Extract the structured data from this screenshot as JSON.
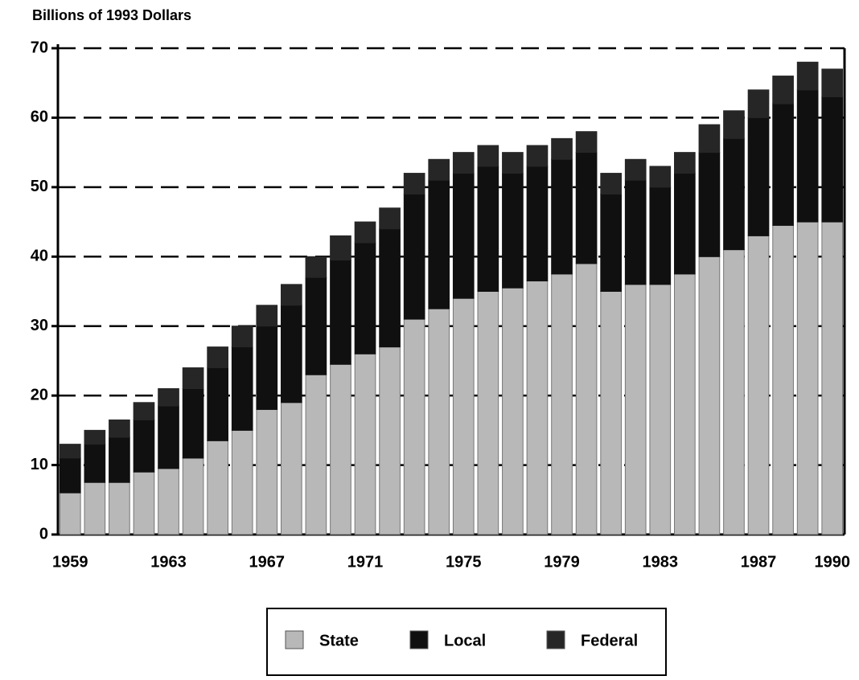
{
  "chart_data": {
    "type": "stacked_bar",
    "ylabel": "Billions of 1993 Dollars",
    "categories": [
      "1959",
      null,
      null,
      null,
      "1963",
      null,
      null,
      null,
      "1967",
      null,
      null,
      null,
      "1971",
      null,
      null,
      null,
      "1975",
      null,
      null,
      null,
      "1979",
      null,
      null,
      null,
      "1983",
      null,
      null,
      null,
      "1987",
      null,
      null,
      "1990"
    ],
    "series": [
      {
        "name": "State",
        "color": "#b8b8b8",
        "values": [
          6,
          7.5,
          7.5,
          9,
          9.5,
          11,
          13.5,
          15,
          18,
          19,
          23,
          24.5,
          26,
          27,
          31,
          32.5,
          34,
          35,
          35.5,
          36.5,
          37.5,
          39,
          35,
          36,
          36,
          37.5,
          40,
          41,
          43,
          44.5,
          45,
          45
        ]
      },
      {
        "name": "Local",
        "color": "#101010",
        "values": [
          5,
          5.5,
          6.5,
          7.5,
          9,
          10,
          10.5,
          12,
          12,
          14,
          14,
          15,
          16,
          17,
          18,
          18.5,
          18,
          18,
          16.5,
          16.5,
          16.5,
          16,
          14,
          15,
          14,
          14.5,
          15,
          16,
          17,
          17.5,
          19,
          18
        ]
      },
      {
        "name": "Federal",
        "color": "#262626",
        "values": [
          2,
          2,
          2.5,
          2.5,
          2.5,
          3,
          3,
          3,
          3,
          3,
          3,
          3.5,
          3,
          3,
          3,
          3,
          3,
          3,
          3,
          3,
          3,
          3,
          3,
          3,
          3,
          3,
          4,
          4,
          4,
          4,
          4,
          4
        ]
      }
    ],
    "ylim": [
      0,
      70
    ],
    "yticks": [
      0,
      10,
      20,
      30,
      40,
      50,
      60,
      70
    ],
    "grid": true
  }
}
